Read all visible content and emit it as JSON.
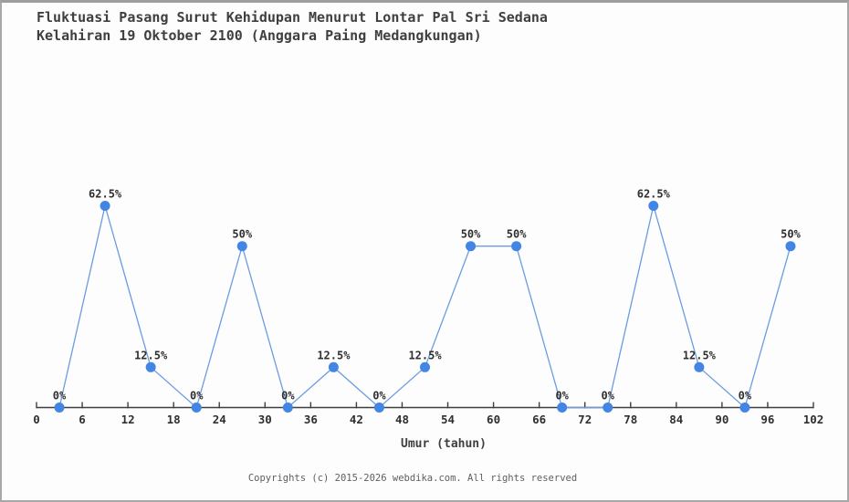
{
  "title": {
    "line1": "Fluktuasi Pasang Surut Kehidupan Menurut Lontar Pal Sri Sedana",
    "line2": "Kelahiran 19 Oktober 2100 (Anggara Paing Medangkungan)"
  },
  "footer": {
    "text": "Copyrights (c) 2015-2026 webdika.com. All rights reserved"
  },
  "chart_data": {
    "type": "line",
    "title": "Fluktuasi Pasang Surut Kehidupan Menurut Lontar Pal Sri Sedana Kelahiran 19 Oktober 2100 (Anggara Paing Medangkungan)",
    "xlabel": "Umur (tahun)",
    "ylabel": "",
    "xlim": [
      0,
      102
    ],
    "ylim": [
      0,
      100
    ],
    "grid": false,
    "legend": "none",
    "x_ticks": [
      0,
      6,
      12,
      18,
      24,
      30,
      36,
      42,
      48,
      54,
      60,
      66,
      72,
      78,
      84,
      90,
      96,
      102
    ],
    "x": [
      3,
      9,
      15,
      21,
      27,
      33,
      39,
      45,
      51,
      57,
      63,
      69,
      75,
      81,
      87,
      93,
      99
    ],
    "values": [
      0,
      62.5,
      12.5,
      0,
      50,
      0,
      12.5,
      0,
      12.5,
      50,
      50,
      0,
      0,
      62.5,
      12.5,
      0,
      50
    ],
    "point_labels": [
      "0%",
      "62.5%",
      "12.5%",
      "0%",
      "50%",
      "0%",
      "12.5%",
      "0%",
      "12.5%",
      "50%",
      "50%",
      "0%",
      "0%",
      "62.5%",
      "12.5%",
      "0%",
      "50%"
    ],
    "colors": {
      "line": "#6b9be0",
      "marker": "#4285e4",
      "axis": "#3f3f3f",
      "tick_label": "#2f2f2f",
      "point_label": "#2f2f2f",
      "axis_label": "#3f3f3f"
    }
  }
}
